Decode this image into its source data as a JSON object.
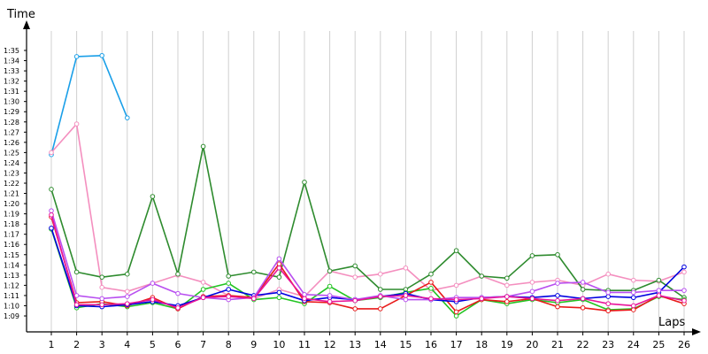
{
  "chart_data": {
    "type": "line",
    "xlabel": "Laps",
    "ylabel": "Time",
    "grid": "vertical",
    "x": [
      1,
      2,
      3,
      4,
      5,
      6,
      7,
      8,
      9,
      10,
      11,
      12,
      13,
      14,
      15,
      16,
      17,
      18,
      19,
      20,
      21,
      22,
      23,
      24,
      25,
      26
    ],
    "xlim": [
      1,
      26
    ],
    "ylim_seconds": [
      69,
      95
    ],
    "y_tick_labels": [
      "1:09",
      "1:10",
      "1:11",
      "1:12",
      "1:13",
      "1:14",
      "1:15",
      "1:16",
      "1:17",
      "1:18",
      "1:19",
      "1:20",
      "1:21",
      "1:22",
      "1:23",
      "1:24",
      "1:25",
      "1:26",
      "1:27",
      "1:28",
      "1:29",
      "1:30",
      "1:31",
      "1:32",
      "1:33",
      "1:34",
      "1:35"
    ],
    "y_tick_values_seconds": [
      69,
      70,
      71,
      72,
      73,
      74,
      75,
      76,
      77,
      78,
      79,
      80,
      81,
      82,
      83,
      84,
      85,
      86,
      87,
      88,
      89,
      90,
      91,
      92,
      93,
      94,
      95
    ],
    "series": [
      {
        "color": "#1a9fe8",
        "values_seconds": [
          84.8,
          94.4,
          94.5,
          88.4
        ]
      },
      {
        "color": "#f48fbf",
        "values_seconds": [
          85.0,
          87.8,
          71.8,
          71.4,
          72.2,
          73.0,
          72.3,
          71.0,
          70.7,
          71.6,
          70.9,
          73.4,
          72.8,
          73.1,
          73.7,
          71.5,
          72.0,
          72.9,
          72.0,
          72.3,
          72.5,
          72.0,
          73.1,
          72.5,
          72.4,
          73.3
        ]
      },
      {
        "color": "#2e8b2e",
        "values_seconds": [
          81.4,
          73.3,
          72.8,
          73.1,
          80.7,
          73.1,
          85.6,
          72.9,
          73.3,
          72.8,
          82.1,
          73.4,
          73.9,
          71.6,
          71.6,
          73.1,
          75.4,
          72.9,
          72.7,
          74.9,
          75.0,
          71.6,
          71.5,
          71.5,
          72.5,
          70.8
        ]
      },
      {
        "color": "#22c422",
        "values_seconds": [
          77.5,
          69.8,
          70.2,
          69.9,
          70.3,
          69.7,
          71.6,
          72.2,
          70.6,
          70.8,
          70.2,
          71.9,
          70.5,
          70.8,
          71.3,
          71.7,
          69.0,
          70.6,
          70.2,
          70.6,
          70.3,
          70.6,
          69.6,
          69.7,
          70.9,
          70.6
        ]
      },
      {
        "color": "#e81a1a",
        "values_seconds": [
          78.7,
          70.3,
          70.4,
          70.0,
          70.8,
          69.7,
          70.9,
          71.0,
          70.8,
          74.1,
          70.4,
          70.3,
          69.7,
          69.7,
          71.0,
          72.3,
          69.4,
          70.6,
          70.4,
          70.7,
          69.9,
          69.8,
          69.5,
          69.6,
          71.0,
          70.2
        ]
      },
      {
        "color": "#0000e0",
        "values_seconds": [
          77.6,
          70.0,
          69.9,
          70.1,
          70.4,
          70.0,
          70.8,
          71.6,
          71.0,
          71.3,
          70.5,
          70.8,
          70.6,
          70.9,
          71.2,
          70.6,
          70.4,
          70.8,
          70.9,
          70.8,
          71.0,
          70.7,
          70.9,
          70.8,
          71.3,
          73.8
        ]
      },
      {
        "color": "#b84ff0",
        "values_seconds": [
          79.3,
          71.0,
          70.7,
          70.9,
          72.2,
          71.2,
          70.8,
          70.6,
          70.8,
          74.6,
          71.1,
          71.0,
          70.6,
          71.0,
          70.6,
          70.6,
          70.8,
          70.8,
          70.9,
          71.4,
          72.2,
          72.3,
          71.3,
          71.3,
          71.5,
          71.5
        ]
      },
      {
        "color": "#e8149a",
        "values_seconds": [
          78.9,
          70.1,
          70.1,
          70.2,
          70.6,
          69.8,
          70.8,
          70.9,
          70.7,
          73.7,
          70.7,
          70.4,
          70.5,
          70.9,
          71.0,
          70.7,
          70.6,
          70.7,
          70.9,
          70.7,
          70.5,
          70.7,
          70.2,
          70.0,
          71.0,
          70.5
        ]
      }
    ]
  }
}
